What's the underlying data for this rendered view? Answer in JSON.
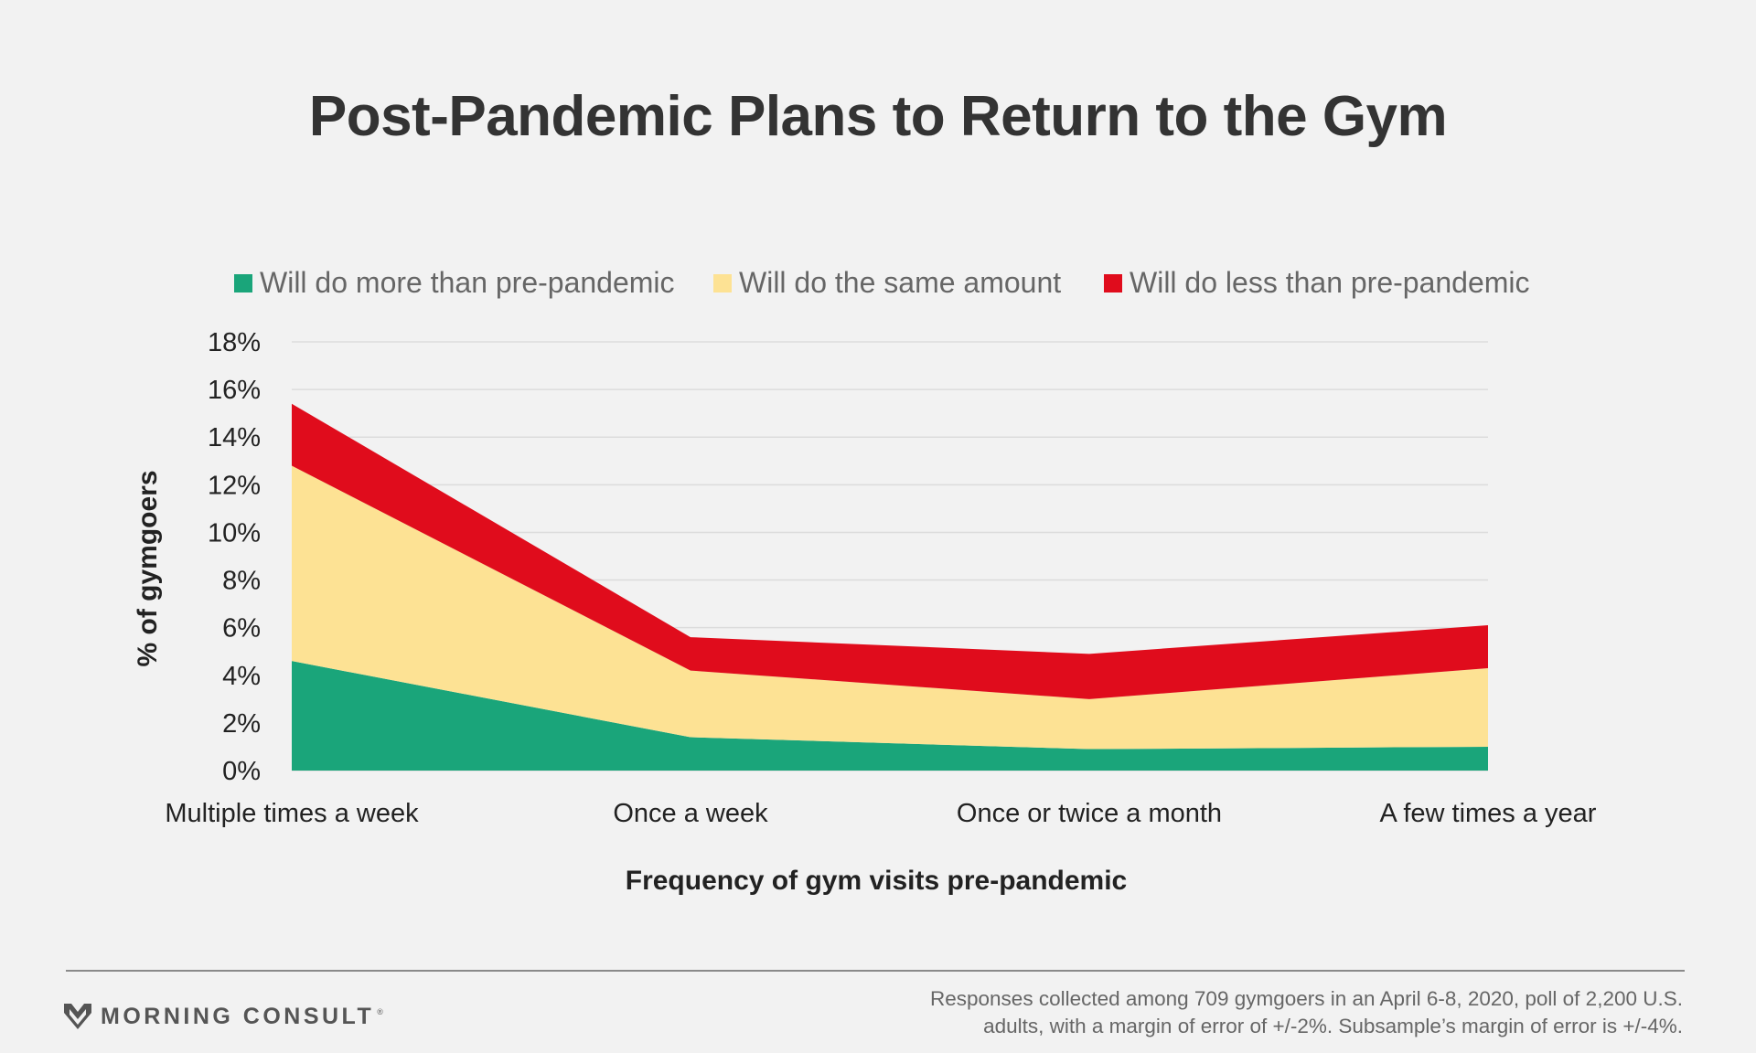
{
  "chart_data": {
    "type": "area",
    "stacked": true,
    "title": "Post-Pandemic Plans to Return to the Gym",
    "xlabel": "Frequency of gym visits pre-pandemic",
    "ylabel": "% of gymgoers",
    "categories": [
      "Multiple times a week",
      "Once a week",
      "Once or twice a month",
      "A few times a year"
    ],
    "ylim": [
      0,
      18
    ],
    "yticks": [
      0,
      2,
      4,
      6,
      8,
      10,
      12,
      14,
      16,
      18
    ],
    "ytick_labels": [
      "0%",
      "2%",
      "4%",
      "6%",
      "8%",
      "10%",
      "12%",
      "14%",
      "16%",
      "18%"
    ],
    "grid": true,
    "legend_position": "top",
    "series": [
      {
        "name": "Will do more than pre-pandemic",
        "color": "#1aa57a",
        "values": [
          4.6,
          1.4,
          0.9,
          1.0
        ]
      },
      {
        "name": "Will do the same amount",
        "color": "#fde294",
        "values": [
          8.2,
          2.8,
          2.1,
          3.3
        ]
      },
      {
        "name": "Will do less than pre-pandemic",
        "color": "#e00c1c",
        "values": [
          2.6,
          1.4,
          1.9,
          1.8
        ]
      }
    ]
  },
  "footer": {
    "brand": "MORNING CONSULT",
    "brand_mark": "®",
    "source_line1": "Responses collected among 709 gymgoers in an April 6-8, 2020, poll of 2,200 U.S.",
    "source_line2": "adults, with a margin of error of +/-2%. Subsample’s margin of error is +/-4%."
  },
  "colors": {
    "background": "#f2f2f2",
    "gridline": "#dcdcdc",
    "title": "#333333"
  }
}
